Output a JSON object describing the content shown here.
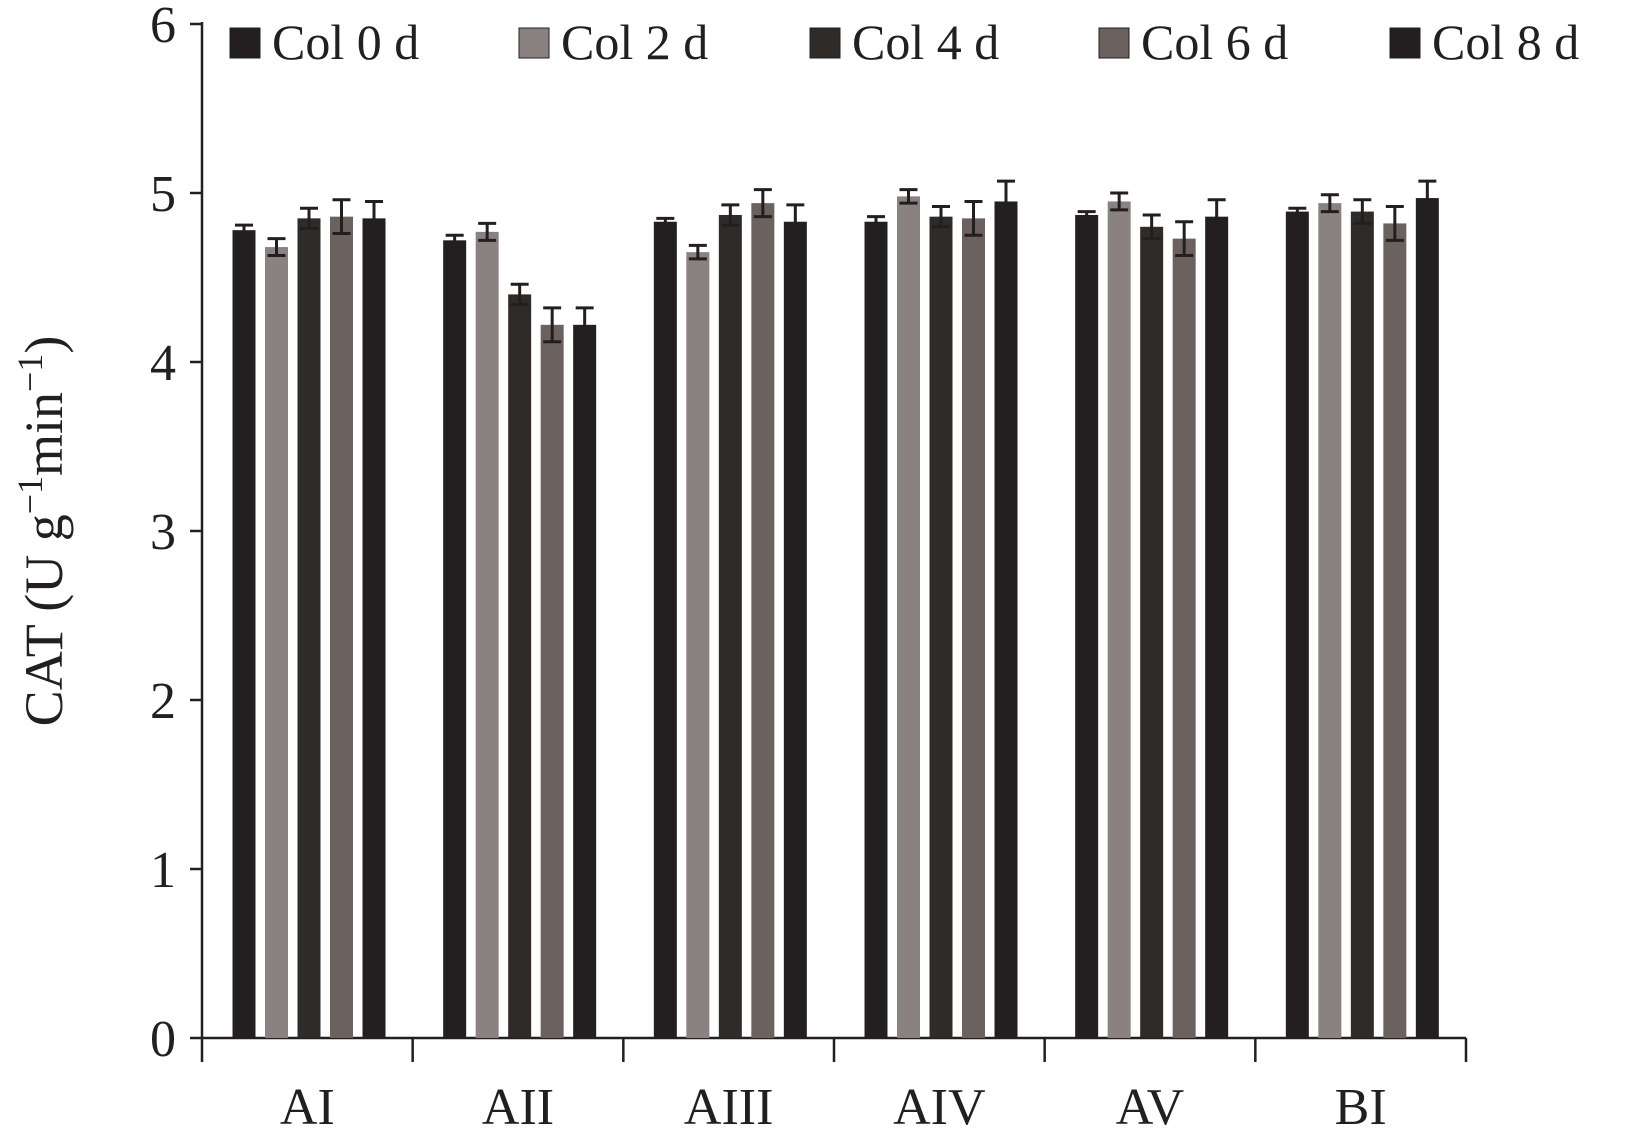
{
  "chart_data": {
    "type": "bar",
    "ylabel_parts": [
      "CAT (U g",
      "−1",
      "min",
      "−1",
      ")"
    ],
    "categories": [
      "AI",
      "AII",
      "AIII",
      "AIV",
      "AV",
      "BI"
    ],
    "series": [
      {
        "name": "Col 0 d",
        "color": "#231f20",
        "values": [
          4.78,
          4.72,
          4.83,
          4.83,
          4.87,
          4.89
        ],
        "errors": [
          0.03,
          0.03,
          0.02,
          0.03,
          0.02,
          0.02
        ]
      },
      {
        "name": "Col 2 d",
        "color": "#8a8280",
        "values": [
          4.68,
          4.77,
          4.65,
          4.98,
          4.95,
          4.94
        ],
        "errors": [
          0.05,
          0.05,
          0.04,
          0.04,
          0.05,
          0.05
        ]
      },
      {
        "name": "Col 4 d",
        "color": "#2f2b29",
        "values": [
          4.85,
          4.4,
          4.87,
          4.86,
          4.8,
          4.89
        ],
        "errors": [
          0.06,
          0.06,
          0.06,
          0.06,
          0.07,
          0.07
        ]
      },
      {
        "name": "Col 6 d",
        "color": "#6b625f",
        "values": [
          4.86,
          4.22,
          4.94,
          4.85,
          4.73,
          4.82
        ],
        "errors": [
          0.1,
          0.1,
          0.08,
          0.1,
          0.1,
          0.1
        ]
      },
      {
        "name": "Col 8 d",
        "color": "#231f20",
        "values": [
          4.85,
          4.22,
          4.83,
          4.95,
          4.86,
          4.97
        ],
        "errors": [
          0.1,
          0.1,
          0.1,
          0.12,
          0.1,
          0.1
        ]
      }
    ],
    "ylim": [
      0,
      6
    ],
    "yticks": [
      0,
      1,
      2,
      3,
      4,
      5,
      6
    ],
    "legend": "top"
  }
}
